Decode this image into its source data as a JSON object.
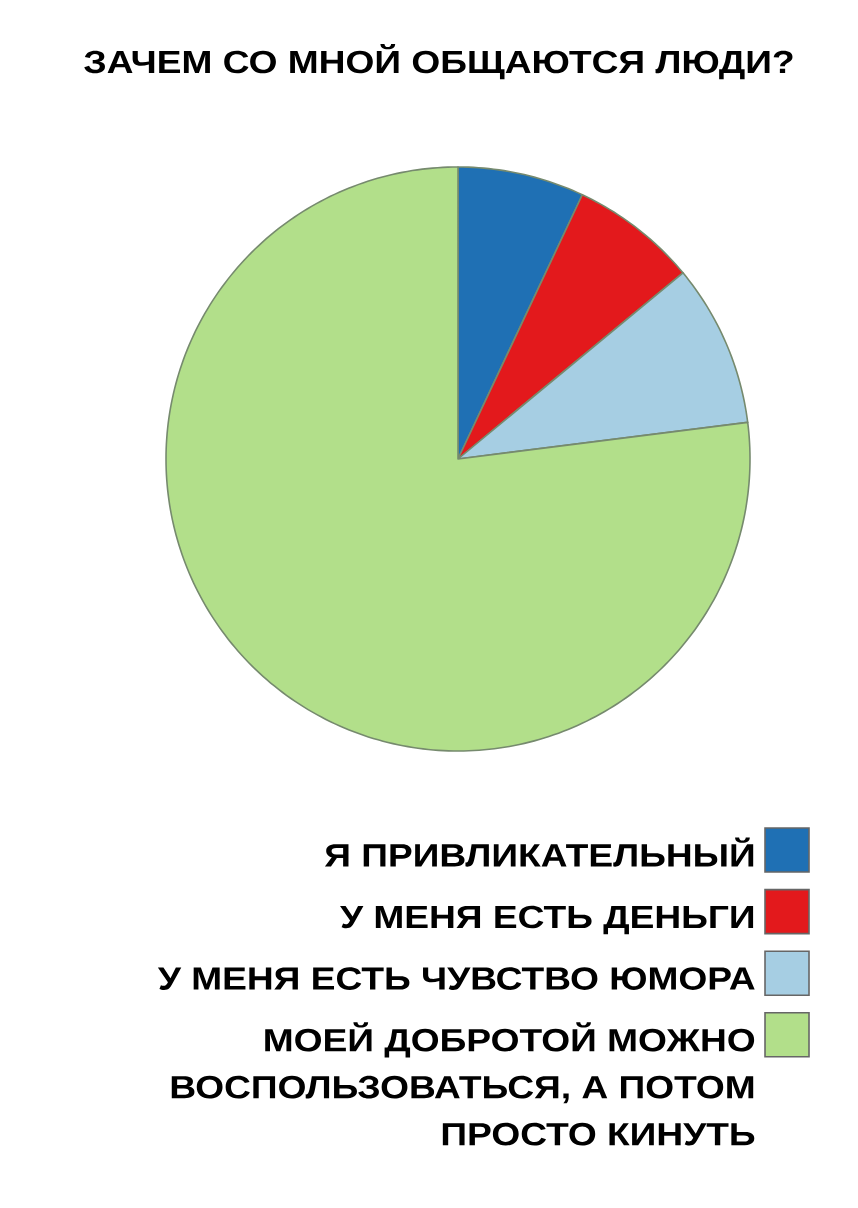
{
  "chart_data": {
    "type": "pie",
    "title": "ЗАЧЕМ СО МНОЙ ОБЩАЮТСЯ ЛЮДИ?",
    "categories": [
      "Я ПРИВЛИКАТЕЛЬНЫЙ",
      "У МЕНЯ ЕСТЬ ДЕНЬГИ",
      "У МЕНЯ ЕСТЬ ЧУВСТВО ЮМОРА",
      "МОЕЙ ДОБРОТОЙ МОЖНО ВОСПОЛЬЗОВАТЬСЯ, А ПОТОМ ПРОСТО КИНУТЬ"
    ],
    "values": [
      7,
      7,
      9,
      77
    ],
    "colors": [
      "#1f70b4",
      "#e3191c",
      "#a6cee3",
      "#b2df8a"
    ],
    "legend": "bottom right"
  }
}
